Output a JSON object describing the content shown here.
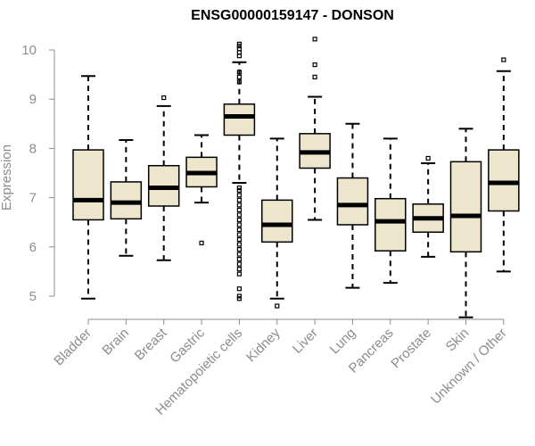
{
  "chart_data": {
    "type": "box",
    "title": "ENSG00000159147 - DONSON",
    "xlabel": "",
    "ylabel": "Expression",
    "ylim": [
      4.55,
      10.3
    ],
    "yticks": [
      5,
      6,
      7,
      8,
      9,
      10
    ],
    "colors": {
      "box_fill": "#ede6cc",
      "stroke": "#000000",
      "axis": "#8c8c8c"
    },
    "categories": [
      "Bladder",
      "Brain",
      "Breast",
      "Gastric",
      "Hematopoietic cells",
      "Kidney",
      "Liver",
      "Lung",
      "Pancreas",
      "Prostate",
      "Skin",
      "Unknown / Other"
    ],
    "boxes": [
      {
        "min": 4.95,
        "q1": 6.55,
        "median": 6.95,
        "q3": 7.97,
        "max": 9.47,
        "outliers": []
      },
      {
        "min": 5.82,
        "q1": 6.57,
        "median": 6.9,
        "q3": 7.32,
        "max": 8.17,
        "outliers": []
      },
      {
        "min": 5.73,
        "q1": 6.83,
        "median": 7.2,
        "q3": 7.65,
        "max": 8.86,
        "outliers": [
          9.03
        ]
      },
      {
        "min": 6.9,
        "q1": 7.22,
        "median": 7.5,
        "q3": 7.82,
        "max": 8.27,
        "outliers": [
          6.08
        ]
      },
      {
        "min": 7.3,
        "q1": 8.27,
        "median": 8.65,
        "q3": 8.9,
        "max": 9.75,
        "outliers": [
          9.88,
          9.95,
          10.02,
          10.08,
          10.12,
          9.55,
          9.45,
          9.35,
          7.2,
          7.15,
          7.05,
          6.95,
          6.85,
          6.75,
          6.65,
          6.55,
          6.45,
          6.35,
          6.25,
          6.15,
          6.05,
          5.95,
          5.85,
          5.75,
          5.65,
          5.55,
          5.45,
          5.15,
          5.0,
          4.95
        ]
      },
      {
        "min": 4.95,
        "q1": 6.1,
        "median": 6.45,
        "q3": 6.95,
        "max": 8.2,
        "outliers": [
          4.8
        ]
      },
      {
        "min": 6.55,
        "q1": 7.6,
        "median": 7.92,
        "q3": 8.3,
        "max": 9.05,
        "outliers": [
          9.45,
          9.7,
          10.22
        ]
      },
      {
        "min": 5.17,
        "q1": 6.45,
        "median": 6.85,
        "q3": 7.4,
        "max": 8.5,
        "outliers": []
      },
      {
        "min": 5.27,
        "q1": 5.92,
        "median": 6.52,
        "q3": 6.98,
        "max": 8.2,
        "outliers": []
      },
      {
        "min": 5.8,
        "q1": 6.3,
        "median": 6.58,
        "q3": 6.87,
        "max": 7.7,
        "outliers": [
          7.8
        ]
      },
      {
        "min": 4.57,
        "q1": 5.9,
        "median": 6.63,
        "q3": 7.73,
        "max": 8.4,
        "outliers": []
      },
      {
        "min": 5.5,
        "q1": 6.73,
        "median": 7.3,
        "q3": 7.97,
        "max": 9.57,
        "outliers": [
          9.8
        ]
      }
    ]
  }
}
